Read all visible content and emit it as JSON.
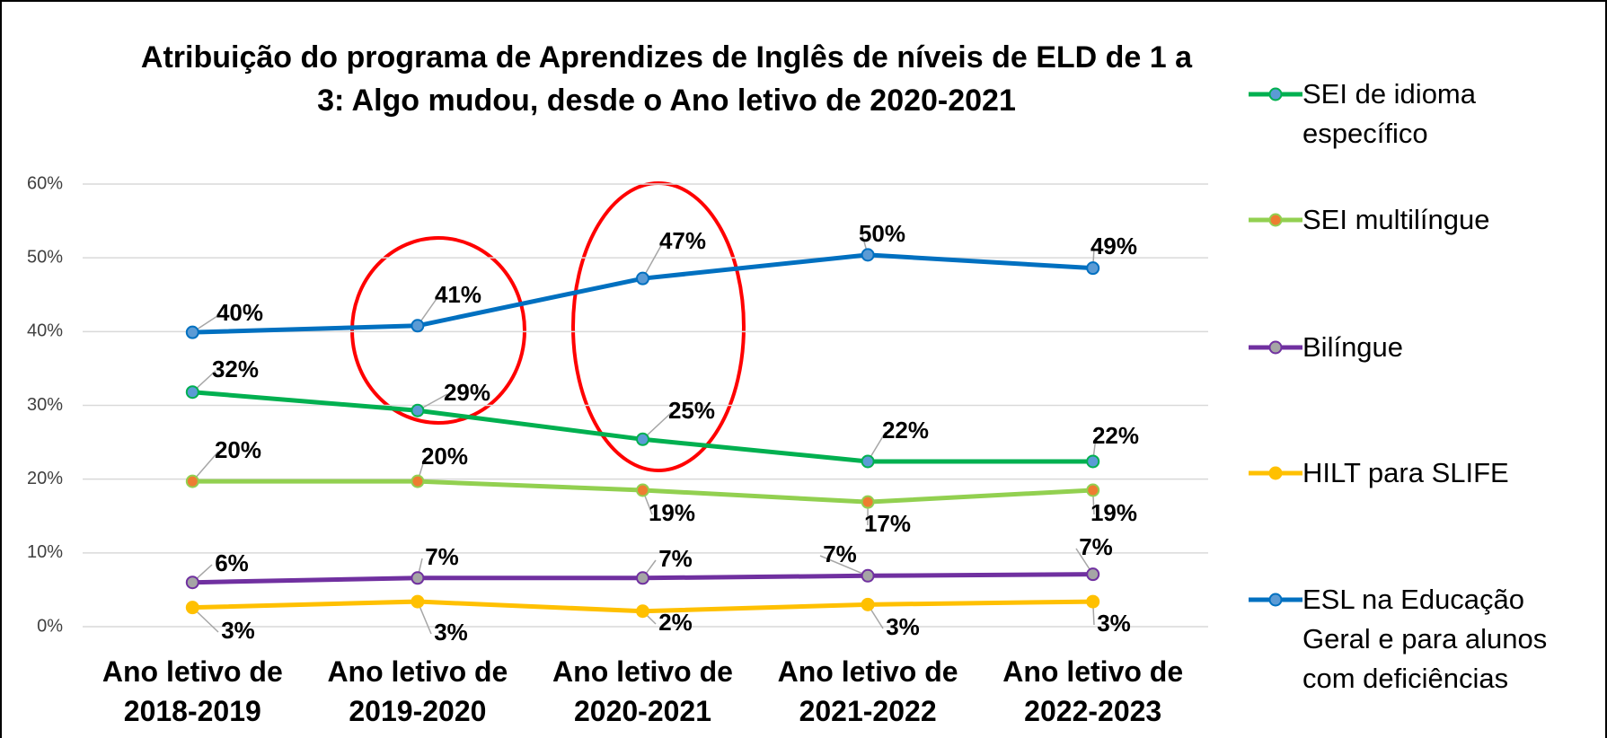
{
  "chart_data": {
    "type": "line",
    "title": "Atribuição do programa de Aprendizes de Inglês de níveis de ELD de 1 a 3: Algo mudou, desde o Ano letivo de 2020-2021",
    "categories": [
      "Ano letivo de 2018-2019",
      "Ano letivo de 2019-2020",
      "Ano letivo de 2020-2021",
      "Ano letivo de 2021-2022",
      "Ano letivo de 2022-2023"
    ],
    "ylim": [
      0,
      60
    ],
    "yticks": [
      {
        "value": 0,
        "label": "0%"
      },
      {
        "value": 10,
        "label": "10%"
      },
      {
        "value": 20,
        "label": "20%"
      },
      {
        "value": 30,
        "label": "30%"
      },
      {
        "value": 40,
        "label": "40%"
      },
      {
        "value": 50,
        "label": "50%"
      },
      {
        "value": 60,
        "label": "60%"
      }
    ],
    "grid": true,
    "legend": "right",
    "series": [
      {
        "name": "SEI de idioma específico",
        "color": "#00b050",
        "marker_color": "#5b9bd5",
        "values": [
          31.8,
          29.3,
          25.4,
          22.4,
          22.4
        ],
        "value_labels": [
          "32%",
          "29%",
          "25%",
          "22%",
          "22%"
        ]
      },
      {
        "name": "SEI multilíngue",
        "color": "#92d050",
        "marker_color": "#ed7d31",
        "values": [
          19.7,
          19.7,
          18.5,
          16.9,
          18.5
        ],
        "value_labels": [
          "20%",
          "20%",
          "19%",
          "17%",
          "19%"
        ]
      },
      {
        "name": "Bilíngue",
        "color": "#7030a0",
        "marker_color": "#a5a5a5",
        "values": [
          6.0,
          6.6,
          6.6,
          6.9,
          7.1
        ],
        "value_labels": [
          "6%",
          "7%",
          "7%",
          "7%",
          "7%"
        ]
      },
      {
        "name": "HILT para SLIFE",
        "color": "#ffc000",
        "marker_color": "#ffc000",
        "values": [
          2.6,
          3.4,
          2.1,
          3.0,
          3.4
        ],
        "value_labels": [
          "3%",
          "3%",
          "2%",
          "3%",
          "3%"
        ]
      },
      {
        "name": "ESL na Educação Geral e para alunos com deficiências",
        "color": "#0070c0",
        "marker_color": "#5b9bd5",
        "values": [
          39.9,
          40.8,
          47.2,
          50.4,
          48.6
        ],
        "value_labels": [
          "40%",
          "41%",
          "47%",
          "50%",
          "49%"
        ]
      }
    ]
  }
}
